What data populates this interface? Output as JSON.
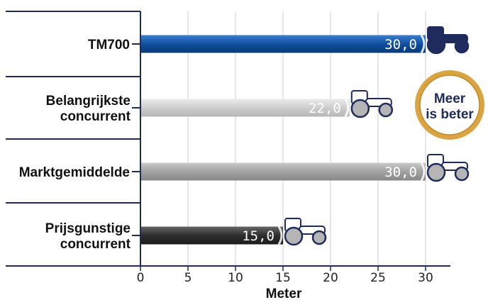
{
  "chart_data": {
    "type": "bar",
    "orientation": "horizontal",
    "categories": [
      [
        "TM700"
      ],
      [
        "Belangrijkste",
        "concurrent"
      ],
      [
        "Marktgemiddelde"
      ],
      [
        "Prijsgunstige",
        "concurrent"
      ]
    ],
    "values": [
      30.0,
      22.0,
      30.0,
      15.0
    ],
    "value_labels": [
      "30,0",
      "22,0",
      "30,0",
      "15,0"
    ],
    "bar_colors": [
      "#1b5aa8",
      "#cfcfcf",
      "#a6a6a6",
      "#3a3a3a"
    ],
    "xlabel": "Meter",
    "xlim": [
      0,
      33
    ],
    "xticks": [
      0,
      5,
      10,
      15,
      20,
      25,
      30
    ],
    "xtick_labels": [
      "0",
      "5",
      "10",
      "15",
      "20",
      "25",
      "30"
    ],
    "grid": true,
    "icon": "tractor-icon",
    "badge": [
      "Meer",
      "is beter"
    ],
    "colors": {
      "axis": "#1e2b5c",
      "grid": "#cccccc",
      "badge_fill": "#ffffff",
      "badge_ring": "#d9a441",
      "tractor_outline": "#1e2b5c",
      "tractor_highlight_fill": "#1e2b5c",
      "tractor_wheel_fill": "#b5b5b5",
      "tractor_bg": "#ffffff"
    }
  }
}
